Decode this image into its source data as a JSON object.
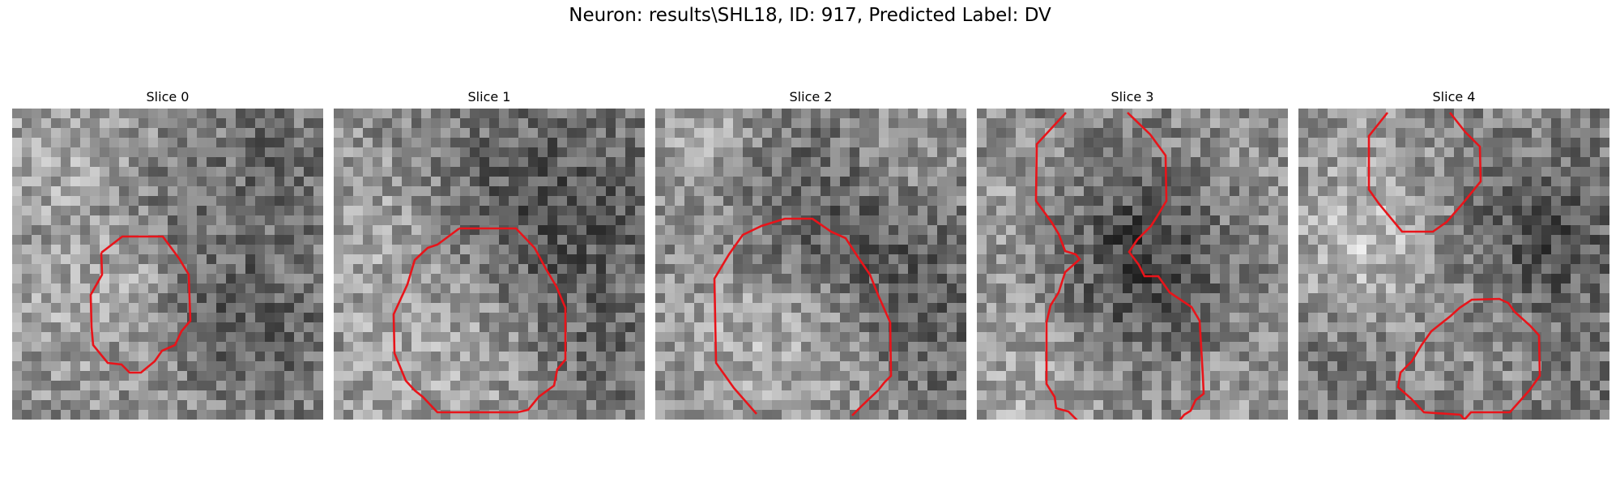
{
  "figure": {
    "title": "Neuron: results\\SHL18, ID: 917, Predicted Label: DV"
  },
  "colors": {
    "contour": "#e8141a",
    "image_colormap": "grayscale"
  },
  "panels": [
    {
      "title": "Slice 0",
      "seed": 11,
      "dark_regions": "lower-right and mid band",
      "bright_regions": "upper-left and center"
    },
    {
      "title": "Slice 1",
      "seed": 23,
      "dark_regions": "upper-right interior",
      "bright_regions": "left and lower"
    },
    {
      "title": "Slice 2",
      "seed": 37,
      "dark_regions": "upper band",
      "bright_regions": "top and lower-left"
    },
    {
      "title": "Slice 3",
      "seed": 41,
      "dark_regions": "center",
      "bright_regions": "left and bottom"
    },
    {
      "title": "Slice 4",
      "seed": 59,
      "dark_regions": "right band",
      "bright_regions": "upper-left"
    }
  ]
}
